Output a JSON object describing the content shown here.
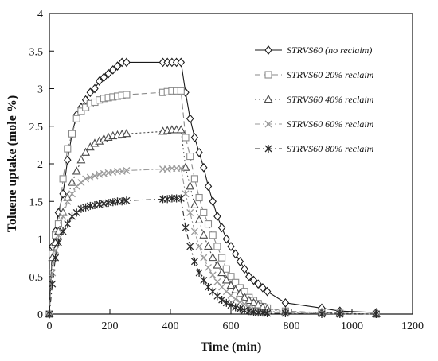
{
  "chart_data": {
    "type": "line",
    "xlabel": "Time (min)",
    "ylabel": "Toluene uptake (mole %)",
    "xlim": [
      0,
      1200
    ],
    "ylim": [
      0,
      4
    ],
    "xticks": [
      0,
      200,
      400,
      600,
      800,
      1000,
      1200
    ],
    "yticks": [
      0,
      0.5,
      1,
      1.5,
      2,
      2.5,
      3,
      3.5,
      4
    ],
    "xtick_labels": [
      "0",
      "200",
      "400",
      "600",
      "800",
      "1000",
      "1200"
    ],
    "ytick_labels": [
      "0",
      "0.5",
      "1",
      "1.5",
      "2",
      "2.5",
      "3",
      "3.5",
      "4"
    ],
    "grid": false,
    "legend_position": "top-right",
    "series": [
      {
        "name": "STRVS60 (no reclaim)",
        "marker": "diamond",
        "line_style": "solid",
        "color": "#1a1a1a",
        "x": [
          0,
          10,
          20,
          30,
          45,
          60,
          75,
          90,
          105,
          120,
          135,
          150,
          165,
          180,
          195,
          210,
          225,
          240,
          255,
          375,
          390,
          405,
          420,
          435,
          450,
          465,
          480,
          495,
          510,
          525,
          540,
          555,
          570,
          585,
          600,
          615,
          630,
          645,
          660,
          675,
          690,
          705,
          720,
          780,
          900,
          960,
          1080
        ],
        "y": [
          0,
          0.9,
          1.1,
          1.35,
          1.6,
          2.05,
          2.4,
          2.65,
          2.75,
          2.85,
          2.95,
          3.0,
          3.1,
          3.15,
          3.2,
          3.25,
          3.3,
          3.35,
          3.35,
          3.35,
          3.35,
          3.35,
          3.35,
          3.35,
          2.95,
          2.6,
          2.35,
          2.15,
          1.95,
          1.7,
          1.5,
          1.3,
          1.15,
          1.0,
          0.9,
          0.8,
          0.7,
          0.6,
          0.5,
          0.45,
          0.4,
          0.35,
          0.3,
          0.15,
          0.08,
          0.04,
          0.02
        ]
      },
      {
        "name": "STRVS60 20% reclaim",
        "marker": "square",
        "line_style": "dashed",
        "color": "#8a8a8a",
        "x": [
          0,
          10,
          20,
          30,
          45,
          60,
          75,
          90,
          105,
          120,
          135,
          150,
          165,
          180,
          195,
          210,
          225,
          240,
          255,
          375,
          390,
          405,
          420,
          435,
          450,
          465,
          480,
          495,
          510,
          525,
          540,
          555,
          570,
          585,
          600,
          615,
          630,
          645,
          660,
          675,
          690,
          705,
          720,
          780,
          900,
          960,
          1080
        ],
        "y": [
          0,
          0.8,
          1.05,
          1.2,
          1.8,
          2.2,
          2.4,
          2.6,
          2.7,
          2.75,
          2.8,
          2.82,
          2.85,
          2.87,
          2.88,
          2.89,
          2.9,
          2.91,
          2.92,
          2.95,
          2.96,
          2.97,
          2.97,
          2.97,
          2.35,
          2.1,
          1.8,
          1.55,
          1.35,
          1.2,
          1.05,
          0.9,
          0.75,
          0.6,
          0.5,
          0.42,
          0.35,
          0.3,
          0.22,
          0.18,
          0.14,
          0.1,
          0.08,
          0.04,
          0.02,
          0.01,
          0.0
        ]
      },
      {
        "name": "STRVS60 40% reclaim",
        "marker": "triangle",
        "line_style": "dotted",
        "color": "#4a4a4a",
        "x": [
          0,
          10,
          20,
          30,
          45,
          60,
          75,
          90,
          105,
          120,
          135,
          150,
          165,
          180,
          195,
          210,
          225,
          240,
          255,
          375,
          390,
          405,
          420,
          435,
          450,
          465,
          480,
          495,
          510,
          525,
          540,
          555,
          570,
          585,
          600,
          615,
          630,
          645,
          660,
          675,
          690,
          705,
          720,
          780,
          900,
          960,
          1080
        ],
        "y": [
          0,
          0.75,
          0.95,
          1.1,
          1.35,
          1.55,
          1.75,
          1.9,
          2.05,
          2.15,
          2.22,
          2.27,
          2.3,
          2.33,
          2.35,
          2.37,
          2.38,
          2.39,
          2.4,
          2.43,
          2.44,
          2.45,
          2.45,
          2.45,
          1.95,
          1.7,
          1.45,
          1.25,
          1.05,
          0.9,
          0.75,
          0.65,
          0.55,
          0.45,
          0.38,
          0.32,
          0.27,
          0.22,
          0.18,
          0.15,
          0.12,
          0.09,
          0.07,
          0.03,
          0.02,
          0.01,
          0.0
        ]
      },
      {
        "name": "STRVS60 60% reclaim",
        "marker": "x",
        "line_style": "dash-dot",
        "color": "#9a9a9a",
        "x": [
          0,
          10,
          20,
          30,
          45,
          60,
          75,
          90,
          105,
          120,
          135,
          150,
          165,
          180,
          195,
          210,
          225,
          240,
          255,
          375,
          390,
          405,
          420,
          435,
          450,
          465,
          480,
          495,
          510,
          525,
          540,
          555,
          570,
          585,
          600,
          615,
          630,
          645,
          660,
          675,
          690,
          705,
          720,
          780,
          900,
          960,
          1080
        ],
        "y": [
          0,
          0.55,
          0.85,
          1.05,
          1.3,
          1.5,
          1.6,
          1.7,
          1.75,
          1.8,
          1.82,
          1.84,
          1.86,
          1.87,
          1.88,
          1.89,
          1.9,
          1.9,
          1.91,
          1.93,
          1.93,
          1.94,
          1.94,
          1.94,
          1.6,
          1.35,
          1.1,
          0.9,
          0.75,
          0.62,
          0.52,
          0.43,
          0.36,
          0.3,
          0.25,
          0.2,
          0.16,
          0.13,
          0.1,
          0.08,
          0.06,
          0.05,
          0.04,
          0.02,
          0.01,
          0.0,
          0.0
        ]
      },
      {
        "name": "STRVS60 80% reclaim",
        "marker": "asterisk",
        "line_style": "dash-dot",
        "color": "#2a2a2a",
        "x": [
          0,
          10,
          20,
          30,
          45,
          60,
          75,
          90,
          105,
          120,
          135,
          150,
          165,
          180,
          195,
          210,
          225,
          240,
          255,
          375,
          390,
          405,
          420,
          435,
          450,
          465,
          480,
          495,
          510,
          525,
          540,
          555,
          570,
          585,
          600,
          615,
          630,
          645,
          660,
          675,
          690,
          705,
          720,
          780,
          900,
          960,
          1080
        ],
        "y": [
          0,
          0.4,
          0.75,
          0.95,
          1.1,
          1.2,
          1.3,
          1.35,
          1.4,
          1.42,
          1.44,
          1.45,
          1.46,
          1.47,
          1.48,
          1.49,
          1.5,
          1.5,
          1.51,
          1.53,
          1.53,
          1.54,
          1.54,
          1.54,
          1.15,
          0.9,
          0.7,
          0.55,
          0.45,
          0.36,
          0.3,
          0.24,
          0.19,
          0.15,
          0.12,
          0.09,
          0.07,
          0.05,
          0.04,
          0.03,
          0.02,
          0.02,
          0.01,
          0.01,
          0.0,
          0.0,
          0.0
        ]
      }
    ]
  }
}
